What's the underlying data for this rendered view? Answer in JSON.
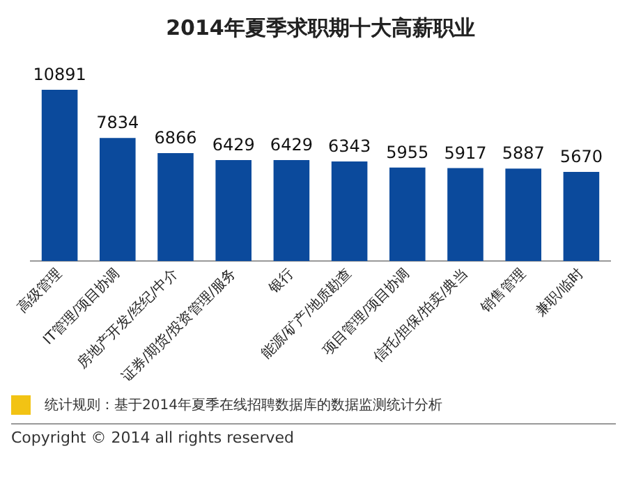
{
  "chart_data": {
    "type": "bar",
    "title": "2014年夏季求职期十大高薪职业",
    "categories": [
      "高级管理",
      "IT管理/项目协调",
      "房地产开发/经纪/中介",
      "证券/期货/投资管理/服务",
      "银行",
      "能源/矿产/地质勘查",
      "项目管理/项目协调",
      "信托/担保/拍卖/典当",
      "销售管理",
      "兼职/临时"
    ],
    "values": [
      10891,
      7834,
      6866,
      6429,
      6429,
      6343,
      5955,
      5917,
      5887,
      5670
    ],
    "color": "#0b4a9c",
    "data_labels": true,
    "grid": false,
    "legend": false,
    "annotations": [
      "统计规则：基于2014年夏季在线招聘数据库的数据监测统计分析",
      "Copyright © 2014 all rights reserved"
    ]
  }
}
